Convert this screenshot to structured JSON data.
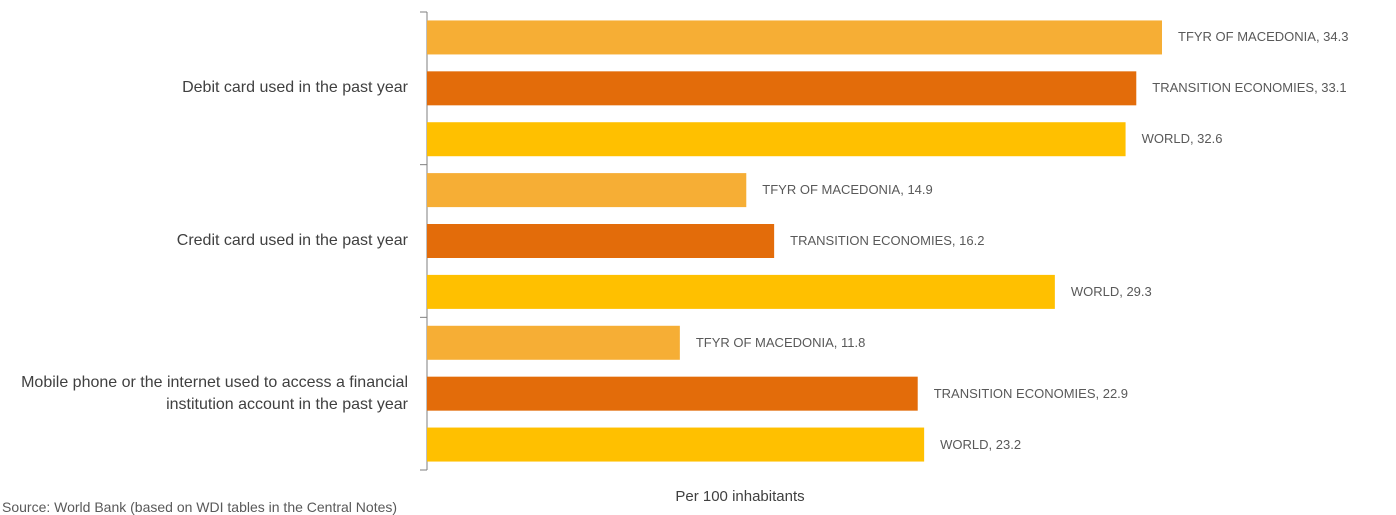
{
  "chart_data": {
    "type": "bar",
    "orientation": "horizontal",
    "categories": [
      "Debit card used in the past year",
      "Credit card used in the past year",
      "Mobile phone or the internet used to access a financial institution account in the past year"
    ],
    "series": [
      {
        "name": "TFYR OF MACEDONIA",
        "color": "#f6ae35",
        "values": [
          34.3,
          14.9,
          11.8
        ],
        "value_labels": [
          "TFYR OF MACEDONIA, 34.3",
          "TFYR OF MACEDONIA, 14.9",
          "TFYR OF MACEDONIA, 11.8"
        ]
      },
      {
        "name": "TRANSITION ECONOMIES",
        "color": "#e36c0a",
        "values": [
          33.1,
          16.2,
          22.9
        ],
        "value_labels": [
          "TRANSITION ECONOMIES, 33.1",
          "TRANSITION ECONOMIES, 16.2",
          "TRANSITION ECONOMIES, 22.9"
        ]
      },
      {
        "name": "WORLD",
        "color": "#ffc000",
        "values": [
          32.6,
          29.3,
          23.2
        ],
        "value_labels": [
          "WORLD, 32.6",
          "WORLD, 29.3",
          "WORLD, 23.2"
        ]
      }
    ],
    "x_axis_label": "Per 100 inhabitants",
    "source": "Source: World Bank (based on WDI tables in the Central Notes)"
  }
}
